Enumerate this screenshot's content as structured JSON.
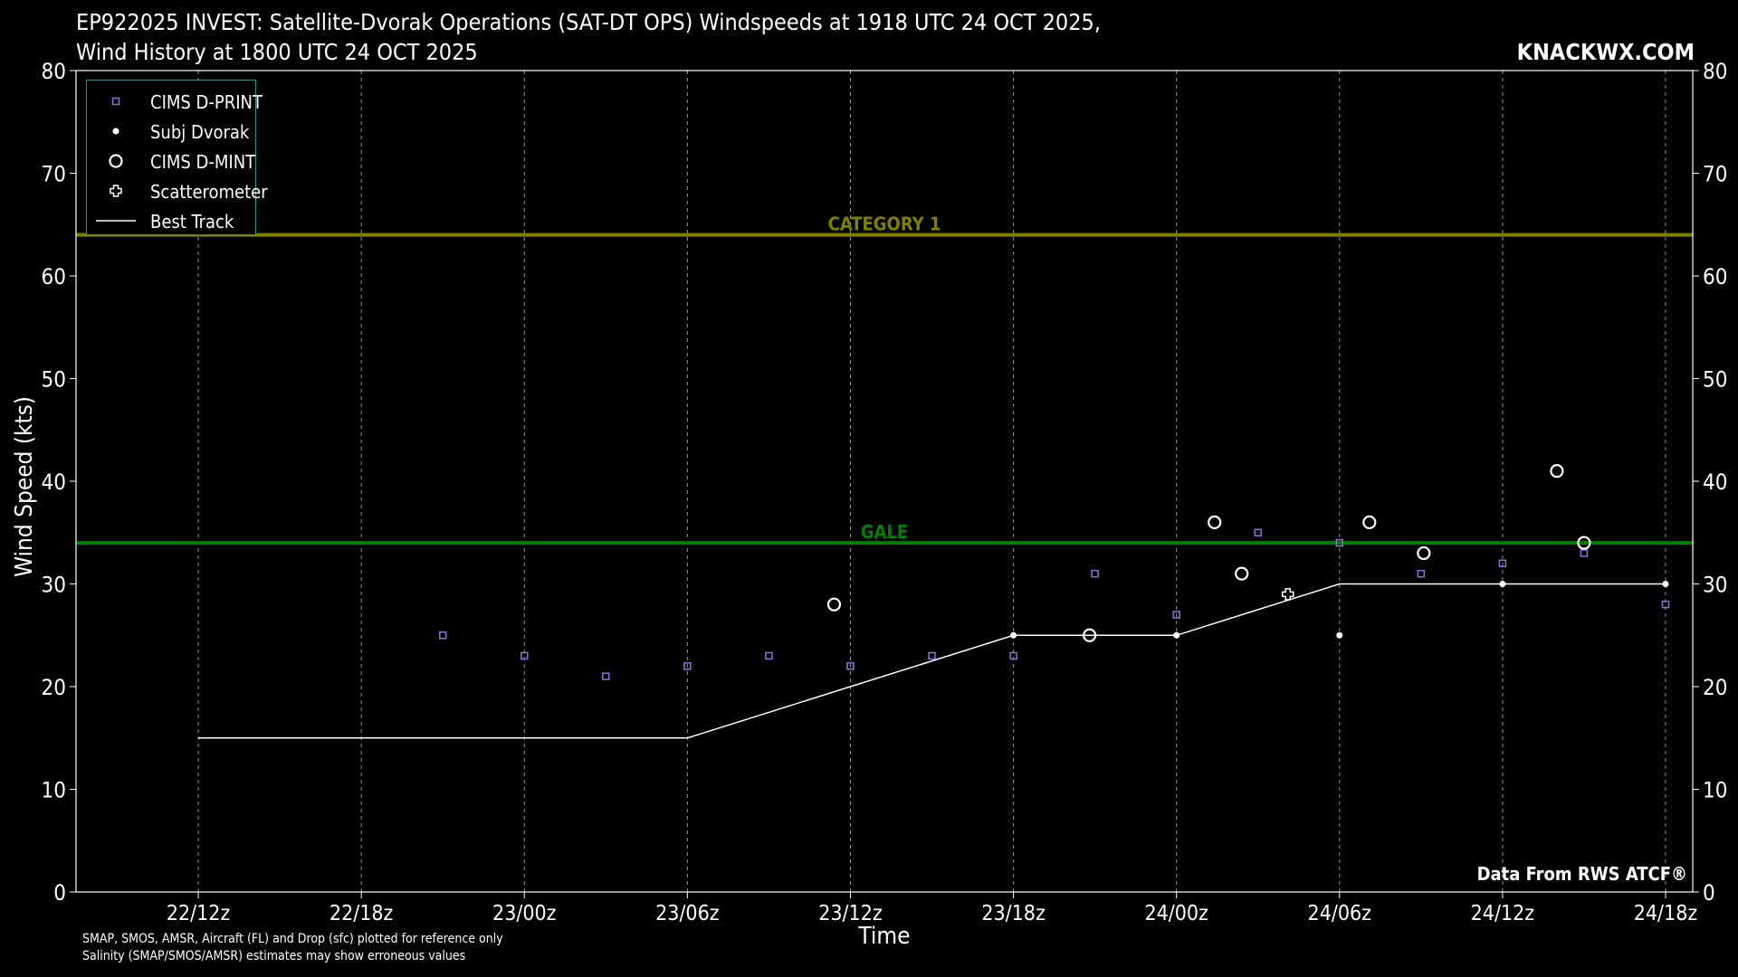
{
  "header": {
    "title_line1": "EP922025 INVEST: Satellite-Dvorak Operations (SAT-DT OPS) Windspeeds at 1918 UTC 24 OCT 2025,",
    "title_line2": "Wind History at 1800 UTC 24 OCT 2025",
    "brand": "KNACKWX.COM"
  },
  "footer": {
    "source": "Data From RWS ATCF®",
    "note1": "SMAP, SMOS, AMSR, Aircraft (FL) and Drop (sfc) plotted for reference only",
    "note2": "Salinity (SMAP/SMOS/AMSR) estimates may show erroneous values"
  },
  "chart_data": {
    "type": "scatter",
    "xlabel": "Time",
    "ylabel": "Wind Speed (kts)",
    "x_unit": "hours since 22/12z",
    "xlim": [
      -4.5,
      55
    ],
    "ylim": [
      0,
      80
    ],
    "y_ticks": [
      0,
      10,
      20,
      30,
      40,
      50,
      60,
      70,
      80
    ],
    "x_ticks": [
      {
        "x": 0,
        "label": "22/12z"
      },
      {
        "x": 6,
        "label": "22/18z"
      },
      {
        "x": 12,
        "label": "23/00z"
      },
      {
        "x": 18,
        "label": "23/06z"
      },
      {
        "x": 24,
        "label": "23/12z"
      },
      {
        "x": 30,
        "label": "23/18z"
      },
      {
        "x": 36,
        "label": "24/00z"
      },
      {
        "x": 42,
        "label": "24/06z"
      },
      {
        "x": 48,
        "label": "24/12z"
      },
      {
        "x": 54,
        "label": "24/18z"
      }
    ],
    "grid": "vertical dashed",
    "legend_position": "top-left",
    "thresholds": [
      {
        "name": "CATEGORY 1",
        "value": 64,
        "color": "#808000"
      },
      {
        "name": "GALE",
        "value": 34,
        "color": "#008000"
      }
    ],
    "series": [
      {
        "name": "CIMS D-PRINT",
        "marker": "square",
        "color": "#9370DB",
        "points": [
          [
            9,
            25
          ],
          [
            12,
            23
          ],
          [
            15,
            21
          ],
          [
            18,
            22
          ],
          [
            21,
            23
          ],
          [
            24,
            22
          ],
          [
            27,
            23
          ],
          [
            30,
            23
          ],
          [
            33,
            31
          ],
          [
            36,
            27
          ],
          [
            39,
            35
          ],
          [
            42,
            34
          ],
          [
            45,
            31
          ],
          [
            48,
            32
          ],
          [
            51,
            33
          ],
          [
            54,
            28
          ]
        ]
      },
      {
        "name": "Subj Dvorak",
        "marker": "dot",
        "color": "#ffffff",
        "points": [
          [
            30,
            25
          ],
          [
            36,
            25
          ],
          [
            42,
            25
          ],
          [
            48,
            30
          ],
          [
            54,
            30
          ]
        ]
      },
      {
        "name": "CIMS D-MINT",
        "marker": "circle",
        "color": "#ffffff",
        "points": [
          [
            23.4,
            28
          ],
          [
            32.8,
            25
          ],
          [
            37.4,
            36
          ],
          [
            38.4,
            31
          ],
          [
            43.1,
            36
          ],
          [
            45.1,
            33
          ],
          [
            50,
            41
          ],
          [
            51,
            34
          ]
        ]
      },
      {
        "name": "Scatterometer",
        "marker": "plus",
        "color": "#ffffff",
        "points": [
          [
            40.1,
            29
          ]
        ]
      },
      {
        "name": "Best Track",
        "marker": "line",
        "color": "#ffffff",
        "points": [
          [
            0,
            15
          ],
          [
            6,
            15
          ],
          [
            12,
            15
          ],
          [
            18,
            15
          ],
          [
            24,
            20
          ],
          [
            30,
            25
          ],
          [
            36,
            25
          ],
          [
            42,
            30
          ],
          [
            48,
            30
          ],
          [
            54,
            30
          ]
        ]
      }
    ]
  }
}
